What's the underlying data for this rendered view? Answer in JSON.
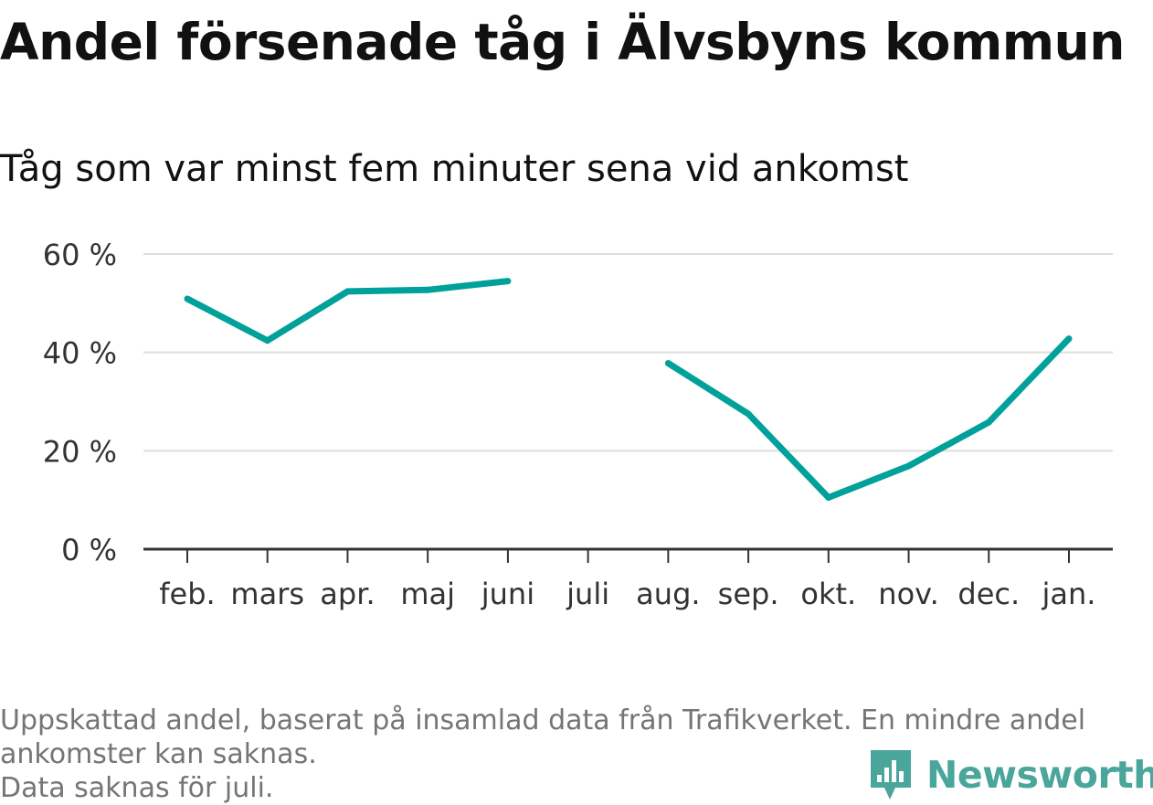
{
  "chart_data": {
    "type": "line",
    "title": "Andel försenade tåg i Älvsbyns kommun",
    "subtitle": "Tåg som var minst fem minuter sena vid ankomst",
    "categories": [
      "feb.",
      "mars",
      "apr.",
      "maj",
      "juni",
      "juli",
      "aug.",
      "sep.",
      "okt.",
      "nov.",
      "dec.",
      "jan."
    ],
    "series": [
      {
        "values": [
          50.9,
          42.4,
          52.4,
          52.7,
          54.5,
          null,
          37.8,
          27.5,
          10.5,
          16.9,
          25.8,
          42.8
        ]
      }
    ],
    "yticks": [
      {
        "value": 0,
        "label": "0 %"
      },
      {
        "value": 20,
        "label": "20 %"
      },
      {
        "value": 40,
        "label": "40 %"
      },
      {
        "value": 60,
        "label": "60 %"
      }
    ],
    "ylim": [
      0,
      60
    ],
    "grid": true,
    "line_color": "#00a19a"
  },
  "footer": {
    "note_line1": "Uppskattad andel, baserat på insamlad data från Trafikverket. En mindre andel",
    "note_line2": "ankomster kan saknas.",
    "note_line3": "Data saknas för juli."
  },
  "brand": {
    "name": "Newsworthy",
    "icon": "newsworthy-logo-icon",
    "color": "#4aa59b"
  }
}
